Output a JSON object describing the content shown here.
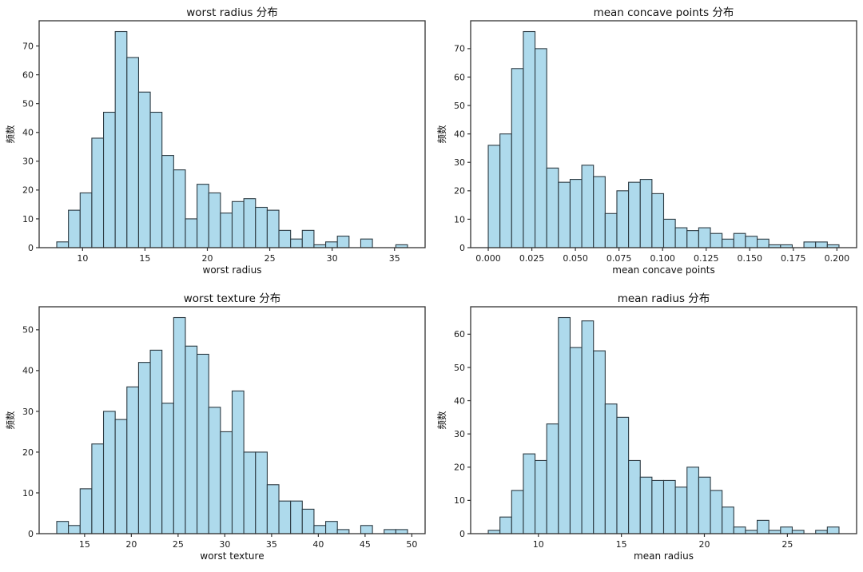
{
  "page": {
    "background": "#ffffff",
    "layout": "2x2-histogram-grid"
  },
  "style": {
    "bar_fill": "#aedaec",
    "bar_edge": "#2c3a42",
    "axis_color": "#333333",
    "text_color": "#1a1a1a"
  },
  "chart_data": [
    {
      "type": "bar",
      "subtype": "histogram",
      "title": "worst radius 分布",
      "xlabel": "worst radius",
      "ylabel": "频数",
      "bin_start": 7.93,
      "bin_end": 36.04,
      "counts": [
        2,
        13,
        19,
        38,
        47,
        75,
        66,
        54,
        47,
        32,
        27,
        10,
        22,
        19,
        12,
        16,
        17,
        14,
        13,
        6,
        3,
        6,
        1,
        2,
        4,
        0,
        3,
        0,
        0,
        1
      ],
      "xlim": [
        6.52,
        37.45
      ],
      "ylim": [
        0,
        78.75
      ],
      "xticks": [
        10,
        15,
        20,
        25,
        30,
        35
      ],
      "xtick_labels": [
        "10",
        "15",
        "20",
        "25",
        "30",
        "35"
      ],
      "yticks": [
        0,
        10,
        20,
        30,
        40,
        50,
        60,
        70
      ],
      "ytick_labels": [
        "0",
        "10",
        "20",
        "30",
        "40",
        "50",
        "60",
        "70"
      ],
      "grid": false,
      "legend": null
    },
    {
      "type": "bar",
      "subtype": "histogram",
      "title": "mean concave points 分布",
      "xlabel": "mean concave points",
      "ylabel": "频数",
      "bin_start": 0.0,
      "bin_end": 0.2012,
      "counts": [
        36,
        40,
        63,
        76,
        70,
        28,
        23,
        24,
        29,
        25,
        12,
        20,
        23,
        24,
        19,
        10,
        7,
        6,
        7,
        5,
        3,
        5,
        4,
        3,
        1,
        1,
        0,
        2,
        2,
        1
      ],
      "xlim": [
        -0.0101,
        0.2113
      ],
      "ylim": [
        0,
        79.8
      ],
      "xticks": [
        0.0,
        0.025,
        0.05,
        0.075,
        0.1,
        0.125,
        0.15,
        0.175,
        0.2
      ],
      "xtick_labels": [
        "0.000",
        "0.025",
        "0.050",
        "0.075",
        "0.100",
        "0.125",
        "0.150",
        "0.175",
        "0.200"
      ],
      "yticks": [
        0,
        10,
        20,
        30,
        40,
        50,
        60,
        70
      ],
      "ytick_labels": [
        "0",
        "10",
        "20",
        "30",
        "40",
        "50",
        "60",
        "70"
      ],
      "grid": false,
      "legend": null
    },
    {
      "type": "bar",
      "subtype": "histogram",
      "title": "worst texture 分布",
      "xlabel": "worst texture",
      "ylabel": "频数",
      "bin_start": 12.02,
      "bin_end": 49.54,
      "counts": [
        3,
        2,
        11,
        22,
        30,
        28,
        36,
        42,
        45,
        32,
        53,
        46,
        44,
        31,
        25,
        35,
        20,
        20,
        12,
        8,
        8,
        6,
        2,
        3,
        1,
        0,
        2,
        0,
        1,
        1
      ],
      "xlim": [
        10.14,
        51.42
      ],
      "ylim": [
        0,
        55.65
      ],
      "xticks": [
        15,
        20,
        25,
        30,
        35,
        40,
        45,
        50
      ],
      "xtick_labels": [
        "15",
        "20",
        "25",
        "30",
        "35",
        "40",
        "45",
        "50"
      ],
      "yticks": [
        0,
        10,
        20,
        30,
        40,
        50
      ],
      "ytick_labels": [
        "0",
        "10",
        "20",
        "30",
        "40",
        "50"
      ],
      "grid": false,
      "legend": null
    },
    {
      "type": "bar",
      "subtype": "histogram",
      "title": "mean radius 分布",
      "xlabel": "mean radius",
      "ylabel": "频数",
      "bin_start": 6.981,
      "bin_end": 28.11,
      "counts": [
        1,
        5,
        13,
        24,
        22,
        33,
        65,
        56,
        64,
        55,
        39,
        35,
        22,
        17,
        16,
        16,
        14,
        20,
        17,
        13,
        8,
        2,
        1,
        4,
        1,
        2,
        1,
        0,
        1,
        2
      ],
      "xlim": [
        5.92,
        29.17
      ],
      "ylim": [
        0,
        68.25
      ],
      "xticks": [
        10,
        15,
        20,
        25
      ],
      "xtick_labels": [
        "10",
        "15",
        "20",
        "25"
      ],
      "yticks": [
        0,
        10,
        20,
        30,
        40,
        50,
        60
      ],
      "ytick_labels": [
        "0",
        "10",
        "20",
        "30",
        "40",
        "50",
        "60"
      ],
      "grid": false,
      "legend": null
    }
  ]
}
